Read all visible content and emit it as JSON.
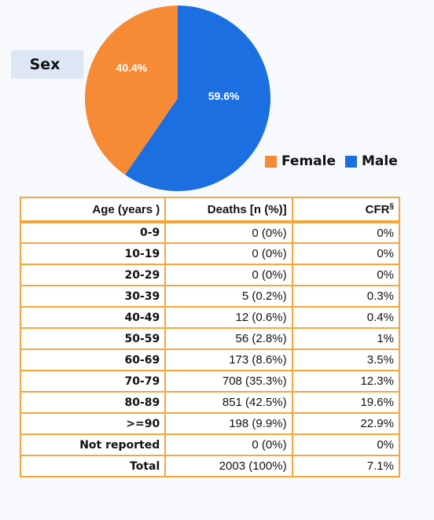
{
  "panel": {
    "label": "Sex"
  },
  "chart_data": {
    "type": "pie",
    "slices": [
      {
        "name": "Female",
        "value": 40.4,
        "label": "40.4%",
        "color": "#f68a35"
      },
      {
        "name": "Male",
        "value": 59.6,
        "label": "59.6%",
        "color": "#1c6fe0"
      }
    ],
    "legend": {
      "placement": "bottom-right",
      "entries": [
        "Female",
        "Male"
      ]
    }
  },
  "table": {
    "headers": {
      "age": "Age (years )",
      "deaths": "Deaths [n (%)]",
      "cfr": "CFR",
      "cfr_mark": "§"
    },
    "rows": [
      {
        "age": "0-9",
        "deaths": "0 (0%)",
        "cfr": "0%"
      },
      {
        "age": "10-19",
        "deaths": "0 (0%)",
        "cfr": "0%"
      },
      {
        "age": "20-29",
        "deaths": "0 (0%)",
        "cfr": "0%"
      },
      {
        "age": "30-39",
        "deaths": "5 (0.2%)",
        "cfr": "0.3%"
      },
      {
        "age": "40-49",
        "deaths": "12 (0.6%)",
        "cfr": "0.4%"
      },
      {
        "age": "50-59",
        "deaths": "56 (2.8%)",
        "cfr": "1%"
      },
      {
        "age": "60-69",
        "deaths": "173 (8.6%)",
        "cfr": "3.5%"
      },
      {
        "age": "70-79",
        "deaths": "708 (35.3%)",
        "cfr": "12.3%"
      },
      {
        "age": "80-89",
        "deaths": "851 (42.5%)",
        "cfr": "19.6%"
      },
      {
        "age": ">=90",
        "deaths": "198 (9.9%)",
        "cfr": "22.9%"
      },
      {
        "age": "Not reported",
        "deaths": "0 (0%)",
        "cfr": "0%"
      },
      {
        "age": "Total",
        "deaths": "2003 (100%)",
        "cfr": "7.1%"
      }
    ]
  }
}
